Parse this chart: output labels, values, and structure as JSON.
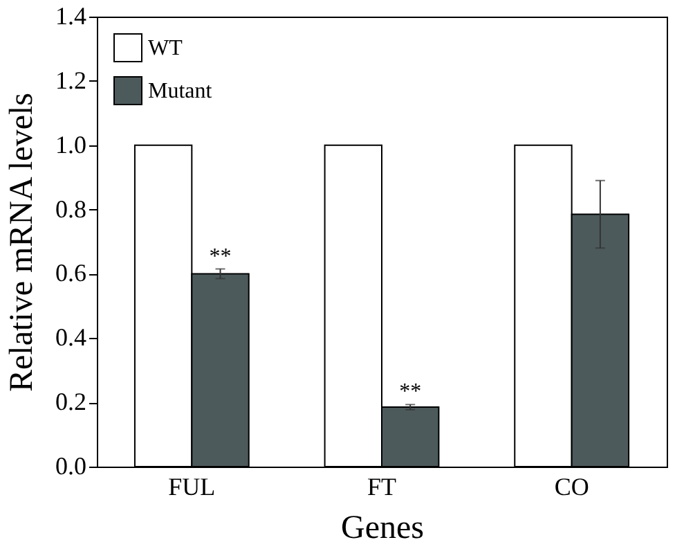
{
  "chart_data": {
    "type": "bar",
    "xlabel": "Genes",
    "ylabel": "Relative mRNA levels",
    "categories": [
      "FUL",
      "FT",
      "CO"
    ],
    "series": [
      {
        "name": "WT",
        "color": "#ffffff",
        "values": [
          1.0,
          1.0,
          1.0
        ]
      },
      {
        "name": "Mutant",
        "color": "#4d5a5c",
        "values": [
          0.6,
          0.185,
          0.785
        ],
        "errors": [
          0.015,
          0.008,
          [
            0.68,
            0.89
          ]
        ]
      }
    ],
    "ylim": [
      0,
      1.4
    ],
    "yticks": [
      {
        "value": 0,
        "label": "0.0"
      },
      {
        "value": 0.2,
        "label": "0.2"
      },
      {
        "value": 0.4,
        "label": "0.4"
      },
      {
        "value": 0.6,
        "label": "0.6"
      },
      {
        "value": 0.8,
        "label": "0.8"
      },
      {
        "value": 1.0,
        "label": "1.0"
      },
      {
        "value": 1.2,
        "label": "1.2"
      },
      {
        "value": 1.4,
        "label": "1.4"
      }
    ],
    "annotations": [
      {
        "text": "**",
        "x": "FUL",
        "y": 0.62
      },
      {
        "text": "**",
        "x": "FT",
        "y": 0.2
      }
    ],
    "legend": "top left",
    "grid": false
  }
}
